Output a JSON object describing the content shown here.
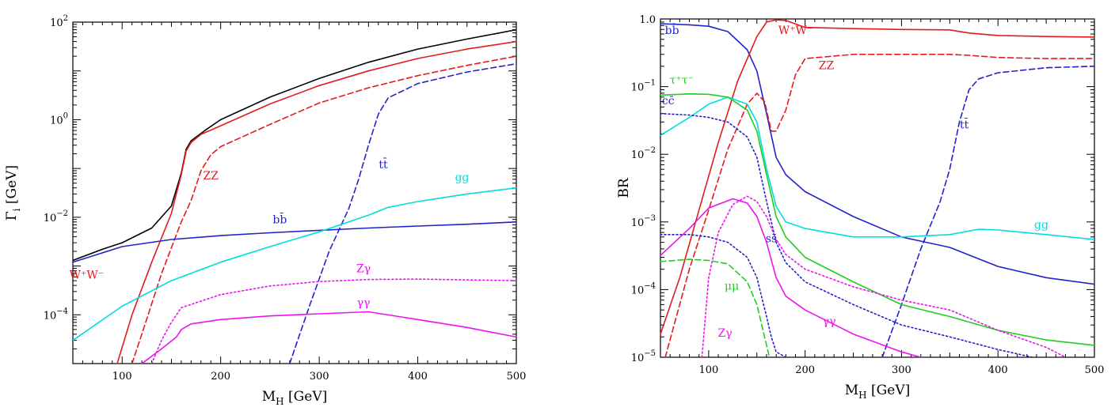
{
  "chart_data": [
    {
      "type": "line",
      "panel": "left",
      "xlabel": "M_H [GeV]",
      "ylabel": "Γ_i [GeV]",
      "xlim": [
        50,
        500
      ],
      "ylim": [
        1e-05,
        100
      ],
      "yscale": "log",
      "xticks": [
        100,
        200,
        300,
        400,
        500
      ],
      "yticks": [
        {
          "value": 0.0001,
          "base": "10",
          "exp": "−4"
        },
        {
          "value": 0.01,
          "base": "10",
          "exp": "−2"
        },
        {
          "value": 1,
          "base": "10",
          "exp": "0"
        },
        {
          "value": 100,
          "base": "10",
          "exp": "2"
        }
      ],
      "grid": false,
      "series": [
        {
          "name": "",
          "color": "#000000",
          "style": "solid",
          "x": [
            50,
            80,
            100,
            130,
            150,
            160,
            165,
            170,
            185,
            200,
            250,
            300,
            350,
            400,
            450,
            500
          ],
          "y": [
            0.0013,
            0.0022,
            0.003,
            0.006,
            0.017,
            0.08,
            0.25,
            0.37,
            0.62,
            1.0,
            2.9,
            7.0,
            15,
            28,
            45,
            70
          ]
        },
        {
          "name": "W+W−",
          "color": "#e41a1c",
          "style": "solid",
          "x": [
            95,
            110,
            130,
            150,
            160,
            165,
            170,
            180,
            200,
            250,
            300,
            350,
            400,
            450,
            500
          ],
          "y": [
            1e-05,
            0.0001,
            0.0012,
            0.012,
            0.075,
            0.23,
            0.34,
            0.5,
            0.75,
            2.1,
            5.0,
            10,
            18,
            28,
            40
          ]
        },
        {
          "name": "ZZ",
          "color": "#e41a1c",
          "style": "dashed",
          "x": [
            110,
            120,
            140,
            160,
            170,
            180,
            190,
            200,
            250,
            300,
            350,
            400,
            450,
            500
          ],
          "y": [
            1e-05,
            4e-05,
            0.0007,
            0.008,
            0.022,
            0.09,
            0.19,
            0.28,
            0.8,
            2.2,
            4.5,
            8,
            13,
            20
          ]
        },
        {
          "name": "bb̄",
          "color": "#2222cc",
          "style": "solid",
          "x": [
            50,
            100,
            150,
            200,
            250,
            300,
            350,
            400,
            450,
            500
          ],
          "y": [
            0.0012,
            0.0025,
            0.0035,
            0.0042,
            0.0048,
            0.0054,
            0.006,
            0.0066,
            0.0072,
            0.008
          ]
        },
        {
          "name": "tt̄",
          "color": "#2222cc",
          "style": "dashed",
          "x": [
            270,
            290,
            310,
            330,
            340,
            350,
            360,
            370,
            400,
            450,
            500
          ],
          "y": [
            1e-05,
            0.00015,
            0.002,
            0.015,
            0.06,
            0.3,
            1.3,
            2.8,
            5.5,
            9.5,
            14
          ]
        },
        {
          "name": "gg",
          "color": "#00dddd",
          "style": "solid",
          "x": [
            50,
            100,
            150,
            200,
            250,
            300,
            350,
            370,
            400,
            450,
            500
          ],
          "y": [
            3e-05,
            0.00015,
            0.0005,
            0.0012,
            0.0025,
            0.005,
            0.011,
            0.016,
            0.021,
            0.03,
            0.04
          ]
        },
        {
          "name": "Zγ",
          "color": "#ee11ee",
          "style": "dotted",
          "x": [
            130,
            140,
            150,
            160,
            200,
            250,
            300,
            350,
            400,
            450,
            500
          ],
          "y": [
            1e-05,
            3e-05,
            7e-05,
            0.00014,
            0.00026,
            0.00039,
            0.00048,
            0.00053,
            0.00054,
            0.00052,
            0.0005
          ]
        },
        {
          "name": "γγ",
          "color": "#ee11ee",
          "style": "solid",
          "x": [
            120,
            140,
            155,
            160,
            170,
            200,
            250,
            300,
            350,
            400,
            450,
            500
          ],
          "y": [
            1e-05,
            2e-05,
            3.5e-05,
            5e-05,
            6.5e-05,
            8e-05,
            9.5e-05,
            0.000105,
            0.000115,
            8e-05,
            5.5e-05,
            3.5e-05
          ]
        }
      ],
      "labels": [
        {
          "text": "W⁺W⁻",
          "color": "#e41a1c",
          "x": 64,
          "y": 0.00055
        },
        {
          "text": "ZZ",
          "color": "#e41a1c",
          "x": 190,
          "y": 0.06
        },
        {
          "text": "tt̄",
          "color": "#2222cc",
          "x": 365,
          "y": 0.1
        },
        {
          "text": "gg",
          "color": "#00dddd",
          "x": 445,
          "y": 0.055
        },
        {
          "text": "bb̄",
          "color": "#2222cc",
          "x": 260,
          "y": 0.0075
        },
        {
          "text": "Zγ",
          "color": "#ee11ee",
          "x": 345,
          "y": 0.00075
        },
        {
          "text": "γγ",
          "color": "#ee11ee",
          "x": 345,
          "y": 0.00015
        }
      ]
    },
    {
      "type": "line",
      "panel": "right",
      "xlabel": "M_H [GeV]",
      "ylabel": "BR",
      "xlim": [
        50,
        500
      ],
      "ylim": [
        1e-05,
        1
      ],
      "yscale": "log",
      "xticks": [
        100,
        200,
        300,
        400,
        500
      ],
      "yticks": [
        {
          "value": 1e-05,
          "base": "10",
          "exp": "−5"
        },
        {
          "value": 0.0001,
          "base": "10",
          "exp": "−4"
        },
        {
          "value": 0.001,
          "base": "10",
          "exp": "−3"
        },
        {
          "value": 0.01,
          "base": "10",
          "exp": "−2"
        },
        {
          "value": 0.1,
          "base": "10",
          "exp": "−1"
        },
        {
          "value": 1,
          "base": "1.0",
          "exp": ""
        }
      ],
      "grid": false,
      "series": [
        {
          "name": "bb̄",
          "color": "#2222cc",
          "style": "solid",
          "x": [
            50,
            80,
            100,
            120,
            140,
            150,
            160,
            170,
            180,
            200,
            250,
            300,
            350,
            400,
            450,
            500
          ],
          "y": [
            0.85,
            0.82,
            0.78,
            0.65,
            0.35,
            0.17,
            0.04,
            0.009,
            0.005,
            0.0028,
            0.0012,
            0.0006,
            0.00042,
            0.00022,
            0.00015,
            0.00012
          ]
        },
        {
          "name": "W⁺W⁻",
          "color": "#e41a1c",
          "style": "solid",
          "x": [
            50,
            70,
            90,
            110,
            130,
            150,
            160,
            170,
            180,
            200,
            250,
            300,
            350,
            370,
            400,
            450,
            500
          ],
          "y": [
            2.2e-05,
            0.00015,
            0.0015,
            0.015,
            0.12,
            0.55,
            0.9,
            0.97,
            0.95,
            0.75,
            0.72,
            0.7,
            0.69,
            0.62,
            0.57,
            0.55,
            0.54
          ]
        },
        {
          "name": "ZZ",
          "color": "#e41a1c",
          "style": "dashed",
          "x": [
            55,
            80,
            100,
            120,
            140,
            150,
            158,
            165,
            170,
            180,
            190,
            200,
            250,
            300,
            350,
            370,
            400,
            450,
            500
          ],
          "y": [
            1e-05,
            0.0002,
            0.0015,
            0.012,
            0.055,
            0.08,
            0.06,
            0.022,
            0.022,
            0.045,
            0.15,
            0.26,
            0.3,
            0.3,
            0.3,
            0.29,
            0.27,
            0.26,
            0.26
          ]
        },
        {
          "name": "tt̄",
          "color": "#2222cc",
          "style": "dashed",
          "x": [
            280,
            300,
            320,
            340,
            350,
            360,
            370,
            380,
            400,
            450,
            500
          ],
          "y": [
            1e-05,
            6e-05,
            0.0004,
            0.002,
            0.006,
            0.03,
            0.09,
            0.13,
            0.16,
            0.19,
            0.2
          ]
        },
        {
          "name": "gg",
          "color": "#00dddd",
          "style": "solid",
          "x": [
            50,
            80,
            100,
            120,
            140,
            150,
            160,
            170,
            180,
            200,
            250,
            300,
            350,
            380,
            400,
            450,
            500
          ],
          "y": [
            0.019,
            0.035,
            0.055,
            0.07,
            0.055,
            0.03,
            0.006,
            0.0017,
            0.001,
            0.0008,
            0.0006,
            0.0006,
            0.00065,
            0.00078,
            0.00076,
            0.00065,
            0.00055
          ]
        },
        {
          "name": "τ⁺τ⁻",
          "color": "#22cc22",
          "style": "solid",
          "x": [
            50,
            80,
            100,
            120,
            140,
            150,
            160,
            170,
            180,
            200,
            250,
            300,
            350,
            400,
            450,
            500
          ],
          "y": [
            0.075,
            0.078,
            0.077,
            0.07,
            0.045,
            0.022,
            0.005,
            0.0012,
            0.0006,
            0.0003,
            0.00013,
            6e-05,
            4e-05,
            2.5e-05,
            1.8e-05,
            1.5e-05
          ]
        },
        {
          "name": "cc̄",
          "color": "#2222cc",
          "style": "dotted",
          "x": [
            50,
            80,
            100,
            120,
            140,
            150,
            160,
            170,
            180,
            200,
            250,
            300,
            350,
            400,
            450,
            500
          ],
          "y": [
            0.04,
            0.038,
            0.035,
            0.03,
            0.018,
            0.009,
            0.002,
            0.0005,
            0.00025,
            0.00013,
            6e-05,
            3e-05,
            2e-05,
            1.3e-05,
            9e-06,
            7e-06
          ]
        },
        {
          "name": "ss̄",
          "color": "#2222cc",
          "style": "dotted",
          "x": [
            50,
            80,
            100,
            120,
            140,
            150,
            160,
            165,
            170,
            180
          ],
          "y": [
            0.00065,
            0.00065,
            0.0006,
            0.0005,
            0.0003,
            0.00015,
            4e-05,
            2e-05,
            1.2e-05,
            1e-05
          ]
        },
        {
          "name": "μμ",
          "color": "#22cc22",
          "style": "dashed",
          "x": [
            50,
            80,
            100,
            120,
            140,
            150,
            155,
            160,
            163
          ],
          "y": [
            0.00026,
            0.00028,
            0.00027,
            0.00024,
            0.00013,
            6e-05,
            3e-05,
            1.5e-05,
            1e-05
          ]
        },
        {
          "name": "γγ",
          "color": "#ee11ee",
          "style": "solid",
          "x": [
            50,
            80,
            100,
            125,
            140,
            150,
            160,
            170,
            180,
            200,
            250,
            300,
            320
          ],
          "y": [
            0.00032,
            0.0008,
            0.0016,
            0.0022,
            0.0019,
            0.0012,
            0.0005,
            0.00015,
            8e-05,
            5e-05,
            2.2e-05,
            1.2e-05,
            1e-05
          ]
        },
        {
          "name": "Zγ",
          "color": "#ee11ee",
          "style": "dotted",
          "x": [
            93,
            100,
            110,
            125,
            140,
            150,
            160,
            170,
            180,
            200,
            250,
            300,
            350,
            400,
            450,
            470
          ],
          "y": [
            1e-05,
            0.00015,
            0.0007,
            0.0018,
            0.0024,
            0.002,
            0.0012,
            0.00055,
            0.00033,
            0.0002,
            0.00011,
            7e-05,
            5e-05,
            2.5e-05,
            1.4e-05,
            1e-05
          ]
        }
      ],
      "labels": [
        {
          "text": "bb̄",
          "color": "#2222cc",
          "x": 62,
          "y": 0.6
        },
        {
          "text": "W⁺W⁻",
          "color": "#e41a1c",
          "x": 190,
          "y": 0.6
        },
        {
          "text": "ZZ",
          "color": "#e41a1c",
          "x": 222,
          "y": 0.18
        },
        {
          "text": "τ⁺τ⁻",
          "color": "#22cc22",
          "x": 72,
          "y": 0.11
        },
        {
          "text": "cc̄",
          "color": "#2222cc",
          "x": 58,
          "y": 0.055
        },
        {
          "text": "tt̄",
          "color": "#2222cc",
          "x": 365,
          "y": 0.024
        },
        {
          "text": "gg",
          "color": "#00dddd",
          "x": 445,
          "y": 0.0008
        },
        {
          "text": "ss̄",
          "color": "#2222cc",
          "x": 165,
          "y": 0.0005
        },
        {
          "text": "μμ",
          "color": "#22cc22",
          "x": 124,
          "y": 0.0001
        },
        {
          "text": "γγ",
          "color": "#ee11ee",
          "x": 225,
          "y": 3e-05
        },
        {
          "text": "Zγ",
          "color": "#ee11ee",
          "x": 117,
          "y": 2e-05
        }
      ]
    }
  ]
}
